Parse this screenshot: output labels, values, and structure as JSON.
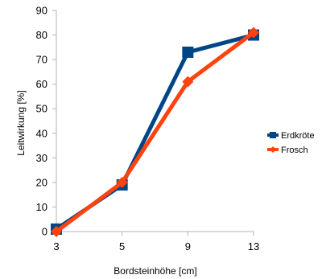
{
  "chart_data": {
    "type": "line",
    "title": "",
    "xlabel": "Bordsteinhöhe [cm]",
    "ylabel": "Leitwirkung [%]",
    "categories": [
      "3",
      "5",
      "9",
      "13"
    ],
    "ylim": [
      0,
      90
    ],
    "yticks": [
      0,
      10,
      20,
      30,
      40,
      50,
      60,
      70,
      80,
      90
    ],
    "grid": false,
    "legend_position": "right",
    "series": [
      {
        "name": "Erdkröte",
        "color": "#004586",
        "marker": "square",
        "values": [
          1,
          19,
          73,
          80
        ]
      },
      {
        "name": "Frosch",
        "color": "#ff420e",
        "marker": "diamond",
        "values": [
          0,
          20,
          61,
          81
        ]
      }
    ]
  }
}
